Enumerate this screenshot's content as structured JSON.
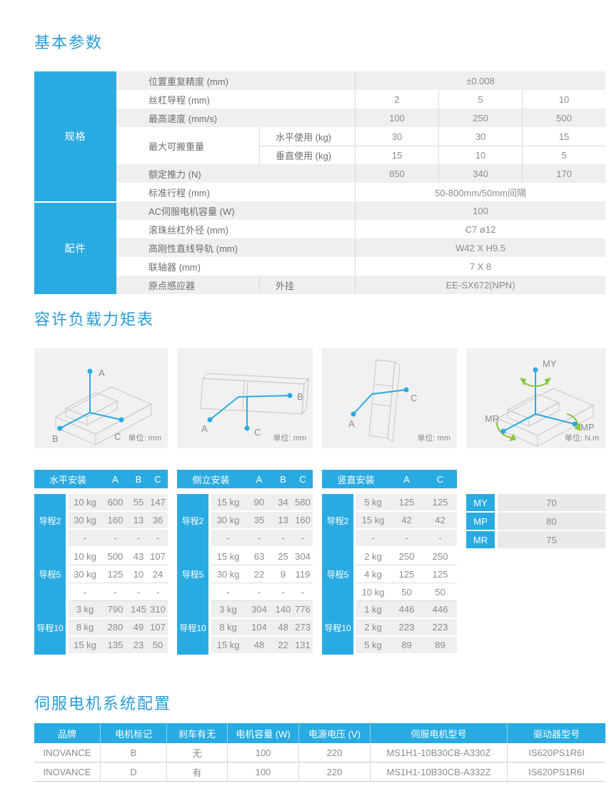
{
  "colors": {
    "accent": "#29abe2",
    "title_blue": "#2b9bd7",
    "row_shade": "#efefef",
    "moment_green": "#8cc63e"
  },
  "sections": [
    {
      "title": "基本参数"
    },
    {
      "title": "容许负载力矩表"
    },
    {
      "title": "伺服电机系统配置"
    }
  ],
  "spec_table": {
    "row_groups": [
      {
        "label": "规格"
      },
      {
        "label": "配件"
      }
    ],
    "rows": [
      {
        "type": "span",
        "label": "位置重复精度 (mm)",
        "value": "±0.008",
        "shade": true
      },
      {
        "type": "three",
        "label": "丝杠导程 (mm)",
        "values": [
          "2",
          "5",
          "10"
        ],
        "shade": false
      },
      {
        "type": "three",
        "label": "最高速度 (mm/s)",
        "values": [
          "100",
          "250",
          "500"
        ],
        "shade": true
      },
      {
        "type": "sub3",
        "label": "最大可搬重量",
        "sub": "水平使用 (kg)",
        "values": [
          "30",
          "30",
          "15"
        ],
        "shade": false
      },
      {
        "type": "sub3",
        "label": "",
        "sub": "垂直使用 (kg)",
        "values": [
          "15",
          "10",
          "5"
        ],
        "shade": false
      },
      {
        "type": "three",
        "label": "额定推力 (N)",
        "values": [
          "850",
          "340",
          "170"
        ],
        "shade": true
      },
      {
        "type": "span",
        "label": "标准行程 (mm)",
        "value": "50-800mm/50mm间隔",
        "shade": false
      },
      {
        "type": "span",
        "label": "AC伺服电机容量 (W)",
        "value": "100",
        "shade": true
      },
      {
        "type": "span",
        "label": "滚珠丝杠外径 (mm)",
        "value": "C7 ø12",
        "shade": false
      },
      {
        "type": "span",
        "label": "高刚性直线导轨 (mm)",
        "value": "W42 X H9.5",
        "shade": true
      },
      {
        "type": "span",
        "label": "联轴器 (mm)",
        "value": "7 X 8",
        "shade": false
      },
      {
        "type": "subspan",
        "label": "原点感应器",
        "sub": "外挂",
        "value": "EE-SX672(NPN)",
        "shade": true
      }
    ]
  },
  "diagrams": [
    {
      "name": "horizontal-mount-axes",
      "labels": [
        "A",
        "B",
        "C"
      ],
      "unit": "单位: mm"
    },
    {
      "name": "side-mount-axes",
      "labels": [
        "A",
        "B",
        "C"
      ],
      "unit": "单位: mm"
    },
    {
      "name": "vertical-mount-axes",
      "labels": [
        "A",
        "C"
      ],
      "unit": "单位: mm"
    },
    {
      "name": "moment-axes",
      "labels": [
        "MY",
        "MR",
        "MP"
      ],
      "unit": "单位: N.m"
    }
  ],
  "load_tables": [
    {
      "title": "水平安装",
      "columns": [
        "A",
        "B",
        "C"
      ],
      "blocks": [
        {
          "lead": "导程2",
          "shade": true,
          "rows": [
            [
              "10 kg",
              "600",
              "55",
              "147"
            ],
            [
              "30 kg",
              "160",
              "13",
              "36"
            ],
            [
              "-",
              "-",
              "-",
              "-"
            ]
          ]
        },
        {
          "lead": "导程5",
          "shade": false,
          "rows": [
            [
              "10 kg",
              "500",
              "43",
              "107"
            ],
            [
              "30 kg",
              "125",
              "10",
              "24"
            ],
            [
              "-",
              "-",
              "-",
              "-"
            ]
          ]
        },
        {
          "lead": "导程10",
          "shade": true,
          "rows": [
            [
              "3 kg",
              "790",
              "145",
              "310"
            ],
            [
              "8 kg",
              "280",
              "49",
              "107"
            ],
            [
              "15 kg",
              "135",
              "23",
              "50"
            ]
          ]
        }
      ]
    },
    {
      "title": "侧立安装",
      "columns": [
        "A",
        "B",
        "C"
      ],
      "blocks": [
        {
          "lead": "导程2",
          "shade": true,
          "rows": [
            [
              "15 kg",
              "90",
              "34",
              "580"
            ],
            [
              "30 kg",
              "35",
              "13",
              "160"
            ],
            [
              "-",
              "-",
              "-",
              "-"
            ]
          ]
        },
        {
          "lead": "导程5",
          "shade": false,
          "rows": [
            [
              "15 kg",
              "63",
              "25",
              "304"
            ],
            [
              "30 kg",
              "22",
              "9",
              "119"
            ],
            [
              "-",
              "-",
              "-",
              "-"
            ]
          ]
        },
        {
          "lead": "导程10",
          "shade": true,
          "rows": [
            [
              "3 kg",
              "304",
              "140",
              "776"
            ],
            [
              "8 kg",
              "104",
              "48",
              "273"
            ],
            [
              "15 kg",
              "48",
              "22",
              "131"
            ]
          ]
        }
      ]
    },
    {
      "title": "竖直安装",
      "columns": [
        "A",
        "C"
      ],
      "blocks": [
        {
          "lead": "导程2",
          "shade": true,
          "rows": [
            [
              "5 kg",
              "125",
              "125"
            ],
            [
              "15 kg",
              "42",
              "42"
            ],
            [
              "-",
              "-",
              "-"
            ]
          ]
        },
        {
          "lead": "导程5",
          "shade": false,
          "rows": [
            [
              "2 kg",
              "250",
              "250"
            ],
            [
              "4 kg",
              "125",
              "125"
            ],
            [
              "10 kg",
              "50",
              "50"
            ]
          ]
        },
        {
          "lead": "导程10",
          "shade": true,
          "rows": [
            [
              "1 kg",
              "446",
              "446"
            ],
            [
              "2 kg",
              "223",
              "223"
            ],
            [
              "5 kg",
              "89",
              "89"
            ]
          ]
        }
      ]
    }
  ],
  "moment_table": {
    "rows": [
      {
        "label": "MY",
        "value": "70"
      },
      {
        "label": "MP",
        "value": "80"
      },
      {
        "label": "MR",
        "value": "75"
      }
    ]
  },
  "servo_table": {
    "headers": [
      "品牌",
      "电机标记",
      "刹车有无",
      "电机容量 (W)",
      "电源电压 (V)",
      "伺服电机型号",
      "驱动器型号"
    ],
    "rows": [
      [
        "INOVANCE",
        "B",
        "无",
        "100",
        "220",
        "MS1H1-10B30CB-A330Z",
        "IS620PS1R6I"
      ],
      [
        "INOVANCE",
        "D",
        "有",
        "100",
        "220",
        "MS1H1-10B30CB-A332Z",
        "IS620PS1R6I"
      ]
    ]
  }
}
